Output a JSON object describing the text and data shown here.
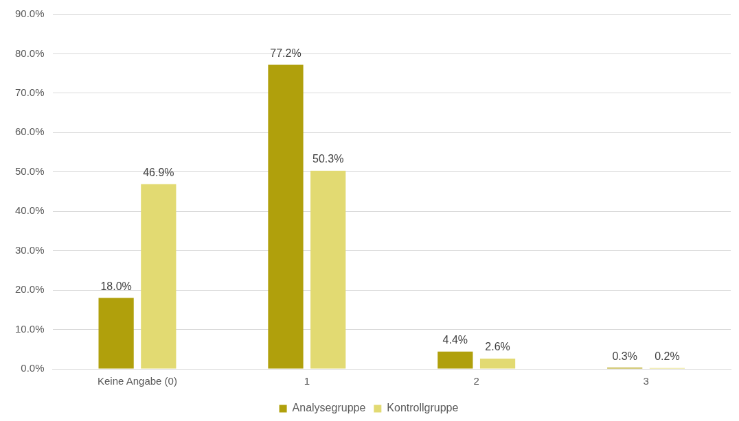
{
  "chart_data": {
    "type": "bar",
    "categories": [
      "Keine Angabe (0)",
      "1",
      "2",
      "3"
    ],
    "series": [
      {
        "name": "Analysegruppe",
        "color": "#b0a00c",
        "values": [
          18.0,
          77.2,
          4.4,
          0.3
        ],
        "value_labels": [
          "18.0%",
          "77.2%",
          "4.4%",
          "0.3%"
        ]
      },
      {
        "name": "Kontrollgruppe",
        "color": "#e2da72",
        "values": [
          46.9,
          50.3,
          2.6,
          0.2
        ],
        "value_labels": [
          "46.9%",
          "50.3%",
          "2.6%",
          "0.2%"
        ]
      }
    ],
    "ylim": [
      0,
      90
    ],
    "yticks": [
      {
        "value": 0,
        "label": "0.0%"
      },
      {
        "value": 10,
        "label": "10.0%"
      },
      {
        "value": 20,
        "label": "20.0%"
      },
      {
        "value": 30,
        "label": "30.0%"
      },
      {
        "value": 40,
        "label": "40.0%"
      },
      {
        "value": 50,
        "label": "50.0%"
      },
      {
        "value": 60,
        "label": "60.0%"
      },
      {
        "value": 70,
        "label": "70.0%"
      },
      {
        "value": 80,
        "label": "80.0%"
      },
      {
        "value": 90,
        "label": "90.0%"
      }
    ],
    "grid": "y",
    "legend": "bottom"
  }
}
